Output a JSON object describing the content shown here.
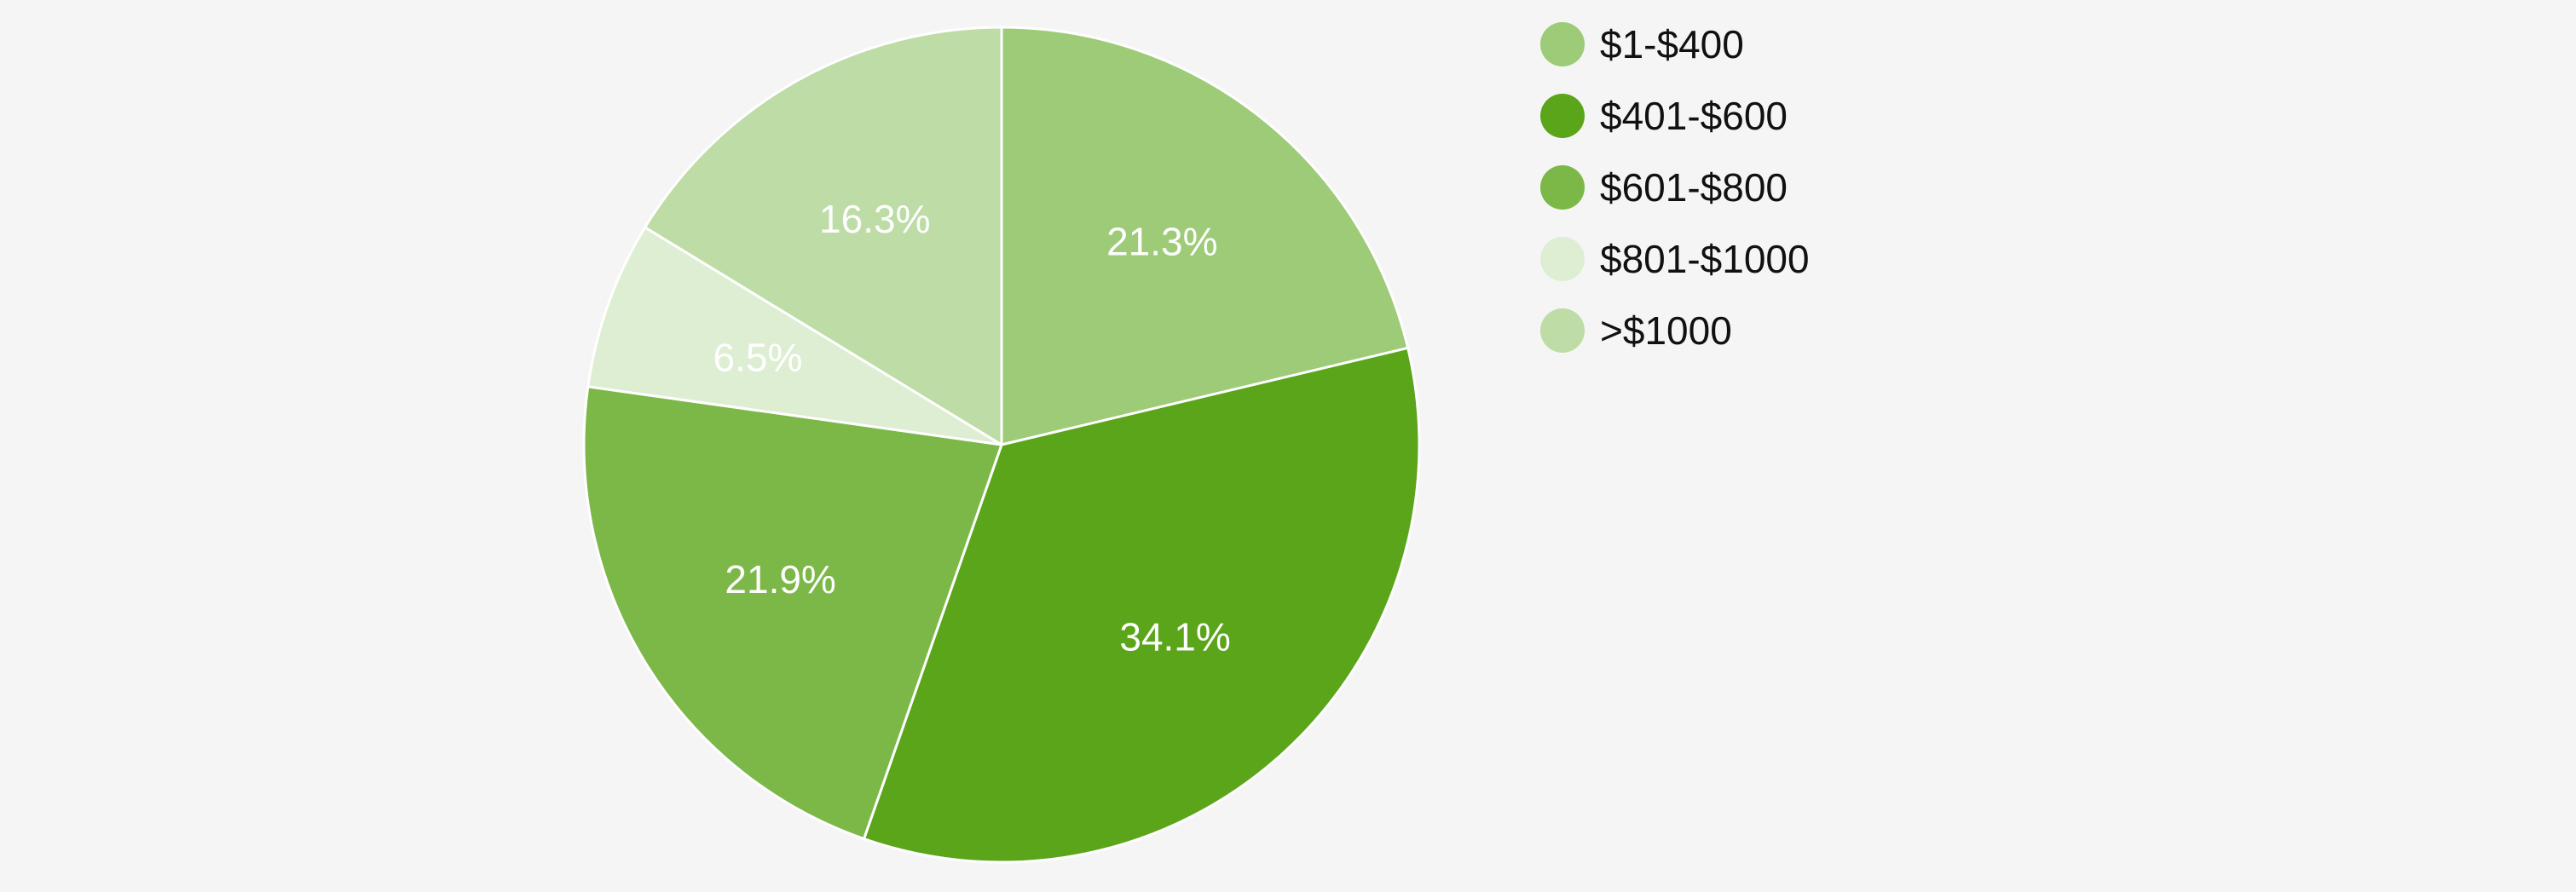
{
  "chart_data": {
    "type": "pie",
    "title": "",
    "slices": [
      {
        "label": "$1-$400",
        "value": 21.3,
        "display": "21.3%",
        "color": "#9dcb77"
      },
      {
        "label": "$401-$600",
        "value": 34.1,
        "display": "34.1%",
        "color": "#5aa51a"
      },
      {
        "label": "$601-$800",
        "value": 21.9,
        "display": "21.9%",
        "color": "#7cb848"
      },
      {
        "label": "$801-$1000",
        "value": 6.5,
        "display": "6.5%",
        "color": "#deeed2"
      },
      {
        "label": ">$1000",
        "value": 16.3,
        "display": "16.3%",
        "color": "#bedca5"
      }
    ],
    "start_angle_deg": 0,
    "direction": "clockwise",
    "legend_position": "right",
    "slice_border_color": "#ffffff",
    "background": "#f5f5f5"
  }
}
